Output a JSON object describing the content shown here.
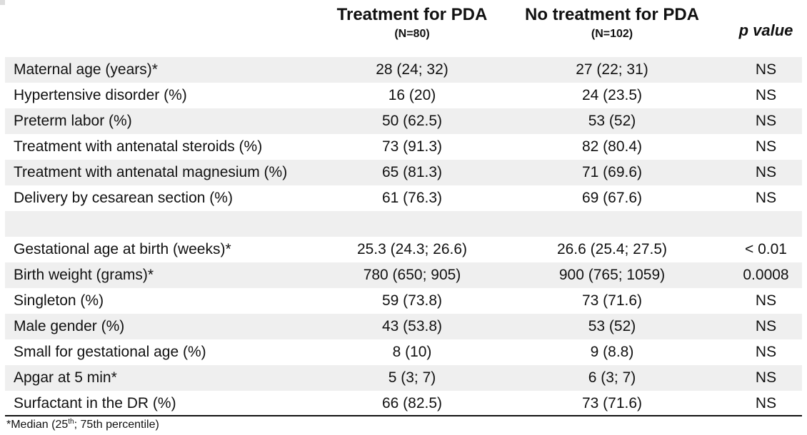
{
  "header": {
    "col1_title": "Treatment for PDA",
    "col1_n": "(N=80)",
    "col2_title": "No treatment for PDA",
    "col2_n": "(N=102)",
    "col3_title": "p value"
  },
  "rows": [
    {
      "label": "Maternal age (years)*",
      "treat": "28 (24; 32)",
      "notreat": "27 (22; 31)",
      "p": "NS"
    },
    {
      "label": "Hypertensive disorder (%)",
      "treat": "16 (20)",
      "notreat": "24 (23.5)",
      "p": "NS"
    },
    {
      "label": "Preterm labor (%)",
      "treat": "50 (62.5)",
      "notreat": "53 (52)",
      "p": "NS"
    },
    {
      "label": "Treatment with antenatal steroids (%)",
      "treat": "73 (91.3)",
      "notreat": "82 (80.4)",
      "p": "NS"
    },
    {
      "label": "Treatment with antenatal magnesium (%)",
      "treat": "65 (81.3)",
      "notreat": "71 (69.6)",
      "p": "NS"
    },
    {
      "label": "Delivery by cesarean section (%)",
      "treat": "61 (76.3)",
      "notreat": "69 (67.6)",
      "p": "NS"
    },
    {
      "label": "",
      "treat": "",
      "notreat": "",
      "p": ""
    },
    {
      "label": "Gestational age at birth (weeks)*",
      "treat": "25.3 (24.3; 26.6)",
      "notreat": "26.6 (25.4; 27.5)",
      "p": "< 0.01"
    },
    {
      "label": "Birth weight (grams)*",
      "treat": "780 (650; 905)",
      "notreat": "900 (765; 1059)",
      "p": "0.0008"
    },
    {
      "label": "Singleton (%)",
      "treat": "59 (73.8)",
      "notreat": "73 (71.6)",
      "p": "NS"
    },
    {
      "label": "Male gender (%)",
      "treat": "43 (53.8)",
      "notreat": "53 (52)",
      "p": "NS"
    },
    {
      "label": "Small for gestational age (%)",
      "treat": "8 (10)",
      "notreat": "9 (8.8)",
      "p": "NS"
    },
    {
      "label": "Apgar at 5 min*",
      "treat": "5 (3; 7)",
      "notreat": "6 (3; 7)",
      "p": "NS"
    },
    {
      "label": "Surfactant in the DR (%)",
      "treat": "66 (82.5)",
      "notreat": "73 (71.6)",
      "p": "NS"
    }
  ],
  "footnote": {
    "prefix": "*Median (25",
    "sup": "th",
    "suffix": "; 75th percentile)"
  }
}
